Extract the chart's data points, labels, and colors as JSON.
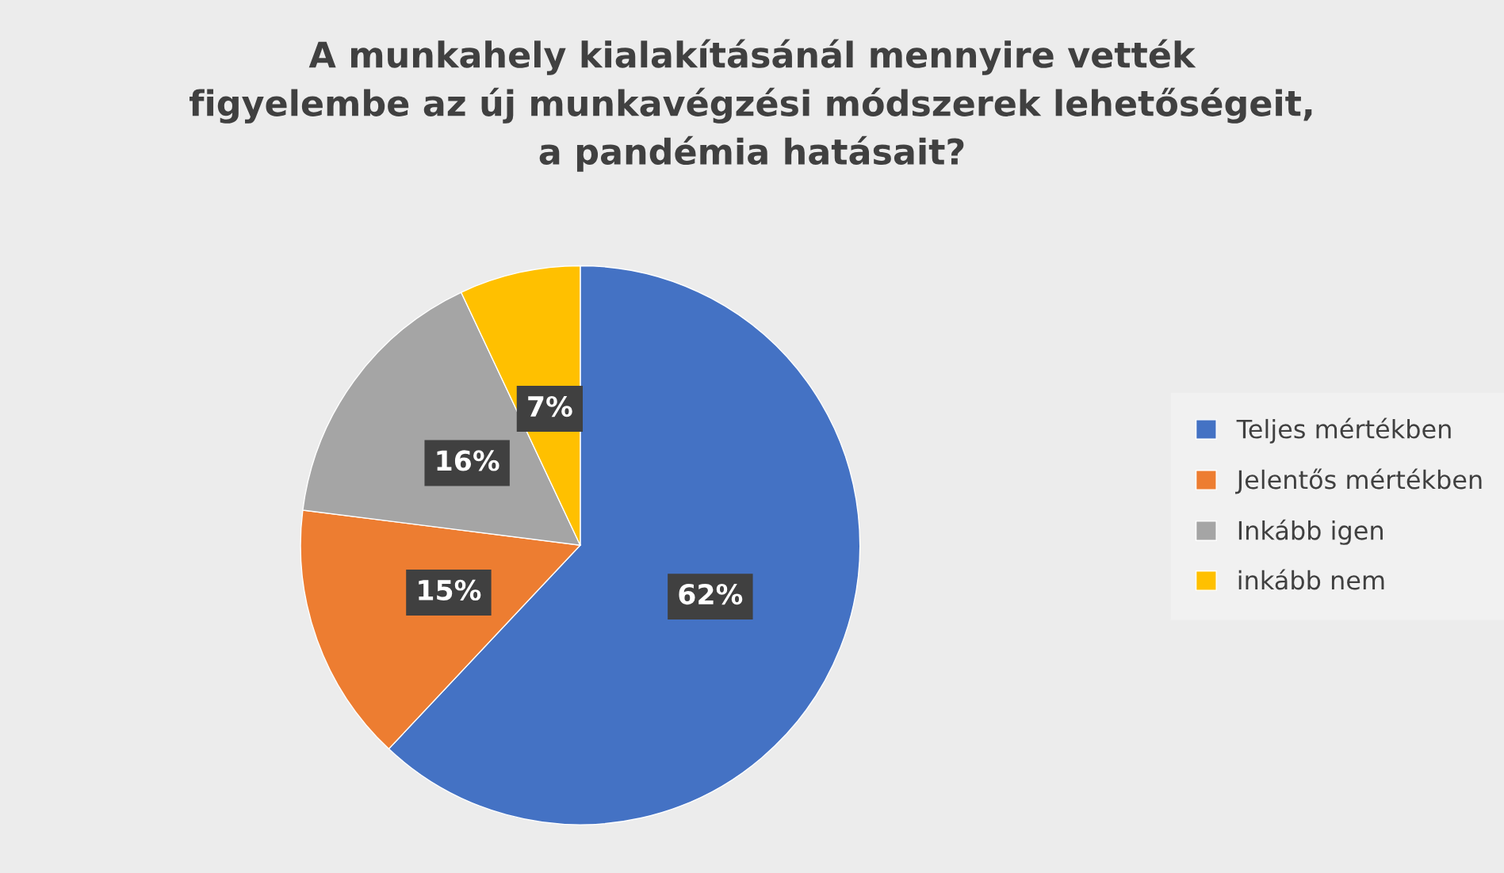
{
  "chart_data": {
    "type": "pie",
    "title": "A munkahely kialakításánál mennyire vették\nfigyelembe az új munkavégzési módszerek lehetőségeit,\na pandémia hatásait?",
    "categories": [
      "Teljes mértékben",
      "Jelentős mértékben",
      "Inkább igen",
      "inkább nem"
    ],
    "values": [
      62,
      15,
      16,
      7
    ],
    "colors": [
      "#4472c4",
      "#ed7d31",
      "#a5a5a5",
      "#ffc000"
    ],
    "value_labels": [
      "62%",
      "15%",
      "16%",
      "7%"
    ],
    "legend": "right"
  }
}
